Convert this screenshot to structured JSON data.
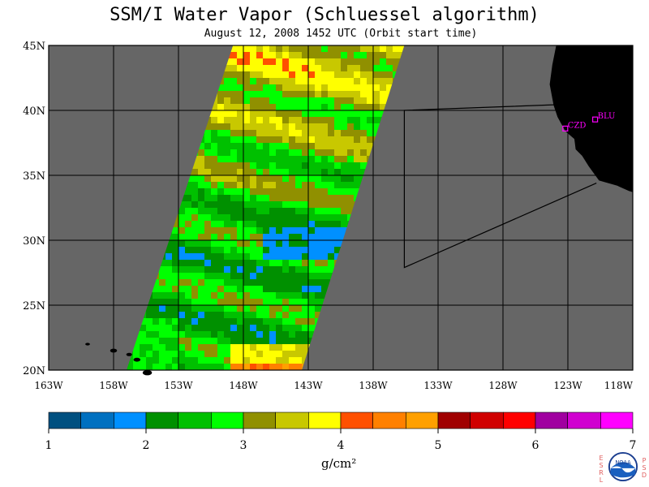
{
  "title": "SSM/I Water Vapor (Schluessel algorithm)",
  "subtitle": "August 12, 2008  1452 UTC  (Orbit start time)",
  "map": {
    "lat_ticks": [
      "45N",
      "40N",
      "35N",
      "30N",
      "25N",
      "20N"
    ],
    "lon_ticks": [
      "163W",
      "158W",
      "153W",
      "148W",
      "143W",
      "138W",
      "133W",
      "128W",
      "123W",
      "118W"
    ],
    "lat_range": [
      20,
      45
    ],
    "lon_range": [
      -163,
      -118
    ],
    "ocean_no_data_color": "#666666",
    "land_color": "#000000",
    "stations": [
      {
        "label": "CZD",
        "lat": 38.6,
        "lon": -123.2
      },
      {
        "label": "BLU",
        "lat": 39.3,
        "lon": -120.9
      }
    ],
    "station_color": "#ff00ff"
  },
  "colorbar": {
    "ticks": [
      "1",
      "2",
      "3",
      "4",
      "5",
      "6",
      "7"
    ],
    "unit": "g/cm²",
    "bins": [
      {
        "from": 1.0,
        "color": "#005080"
      },
      {
        "from": 1.33,
        "color": "#0070c0"
      },
      {
        "from": 1.67,
        "color": "#0090ff"
      },
      {
        "from": 2.0,
        "color": "#009000"
      },
      {
        "from": 2.33,
        "color": "#00c000"
      },
      {
        "from": 2.67,
        "color": "#00ff00"
      },
      {
        "from": 3.0,
        "color": "#909000"
      },
      {
        "from": 3.33,
        "color": "#c8c800"
      },
      {
        "from": 3.67,
        "color": "#ffff00"
      },
      {
        "from": 4.0,
        "color": "#ff5000"
      },
      {
        "from": 4.33,
        "color": "#ff8000"
      },
      {
        "from": 4.67,
        "color": "#ffa000"
      },
      {
        "from": 5.0,
        "color": "#a00000"
      },
      {
        "from": 5.33,
        "color": "#d00000"
      },
      {
        "from": 5.67,
        "color": "#ff0000"
      },
      {
        "from": 6.0,
        "color": "#a000a0"
      },
      {
        "from": 6.33,
        "color": "#d000d0"
      },
      {
        "from": 6.67,
        "color": "#ff00ff"
      }
    ]
  },
  "logo": {
    "left_letters": "ESRL",
    "right_letters": "PSD",
    "badge": "NOAA"
  }
}
